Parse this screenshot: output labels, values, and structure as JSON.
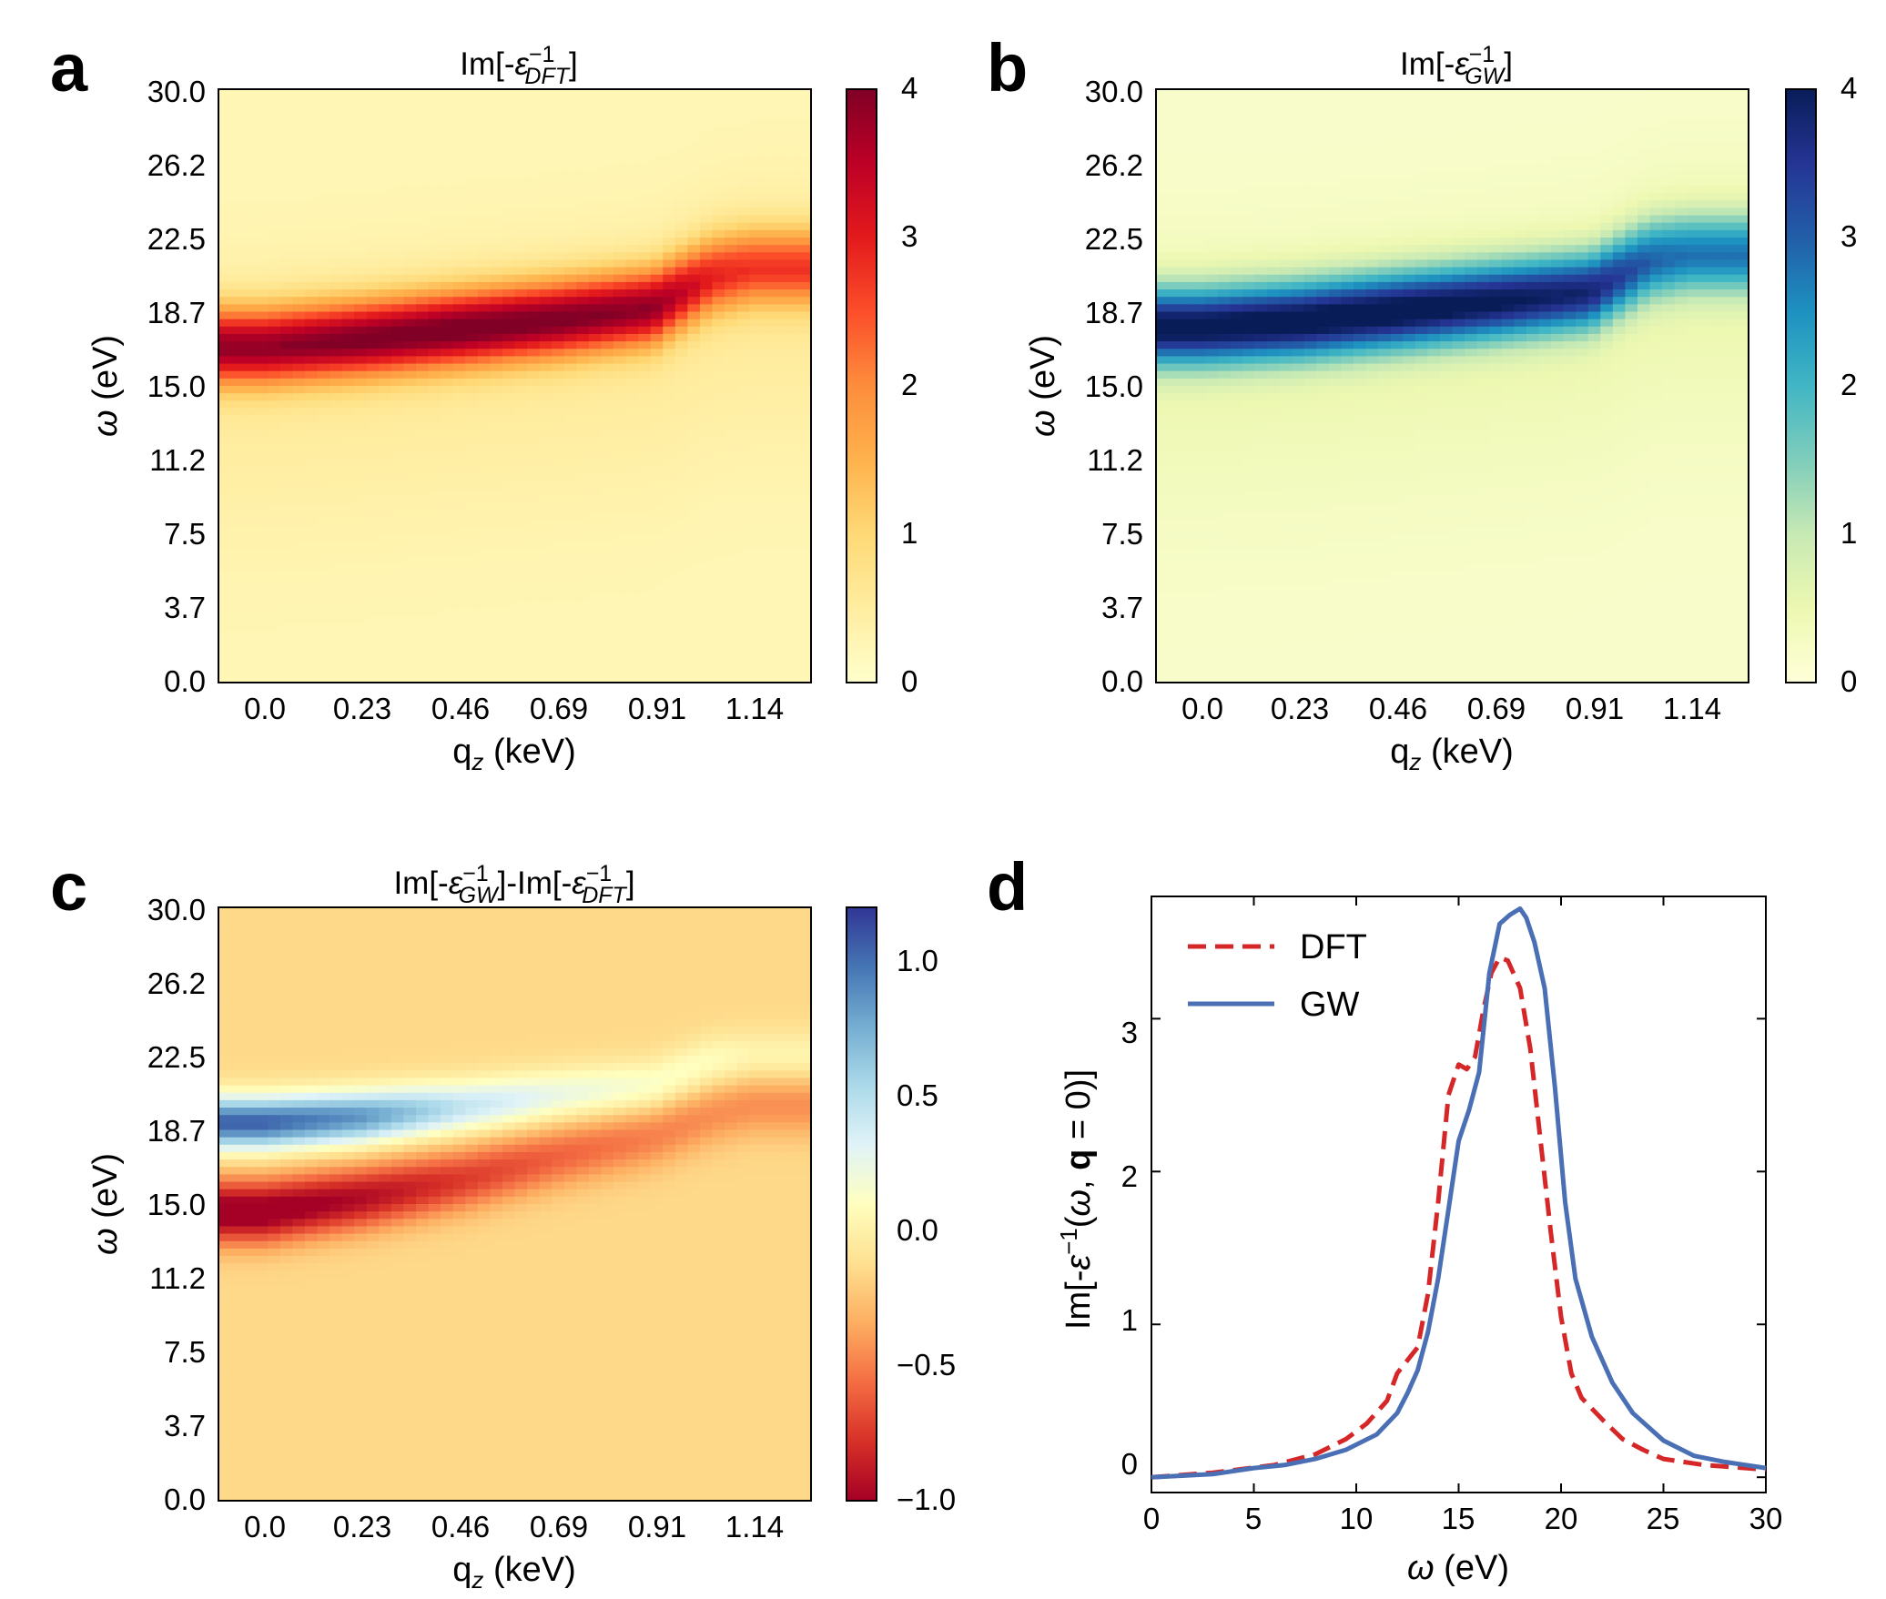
{
  "panels": {
    "a": {
      "label": "a",
      "title": "Im[-ε⁻¹_DFT]"
    },
    "b": {
      "label": "b",
      "title": "Im[-ε⁻¹_GW]"
    },
    "c": {
      "label": "c",
      "title": "Im[-ε⁻¹_GW]-Im[-ε⁻¹_DFT]"
    },
    "d": {
      "label": "d"
    }
  },
  "chart_data": [
    {
      "type": "heatmap",
      "panel": "a",
      "title": "Im[-ε⁻¹_DFT]",
      "xlabel": "q_z (keV)",
      "ylabel": "ω (eV)",
      "x_ticks": [
        "0.0",
        "0.23",
        "0.46",
        "0.69",
        "0.91",
        "1.14"
      ],
      "y_ticks": [
        "0.0",
        "3.7",
        "7.5",
        "11.2",
        "15.0",
        "18.7",
        "22.5",
        "26.2",
        "30.0"
      ],
      "ylim": [
        0,
        30
      ],
      "colormap": "YlOrRd",
      "colorbar": {
        "range": [
          0,
          4
        ],
        "ticks": [
          "0",
          "1",
          "2",
          "3",
          "4"
        ]
      },
      "peak_ridge": {
        "q": [
          0.0,
          0.23,
          0.46,
          0.69,
          0.91,
          1.05,
          1.14
        ],
        "omega": [
          17.0,
          17.4,
          17.9,
          18.4,
          19.0,
          20.6,
          21.0
        ],
        "peak_value": [
          3.3,
          3.5,
          3.6,
          3.5,
          3.3,
          2.4,
          2.2
        ]
      }
    },
    {
      "type": "heatmap",
      "panel": "b",
      "title": "Im[-ε⁻¹_GW]",
      "xlabel": "q_z (keV)",
      "ylabel": "ω (eV)",
      "x_ticks": [
        "0.0",
        "0.23",
        "0.46",
        "0.69",
        "0.91",
        "1.14"
      ],
      "y_ticks": [
        "0.0",
        "3.7",
        "7.5",
        "11.2",
        "15.0",
        "18.7",
        "22.5",
        "26.2",
        "30.0"
      ],
      "ylim": [
        0,
        30
      ],
      "colormap": "YlGnBu",
      "colorbar": {
        "range": [
          0,
          4
        ],
        "ticks": [
          "0",
          "1",
          "2",
          "3",
          "4"
        ]
      },
      "peak_ridge": {
        "q": [
          0.0,
          0.23,
          0.46,
          0.69,
          0.91,
          1.05,
          1.14
        ],
        "omega": [
          18.0,
          18.3,
          18.8,
          19.3,
          19.8,
          21.4,
          21.7
        ],
        "peak_value": [
          3.7,
          3.8,
          3.8,
          3.6,
          3.3,
          2.5,
          2.3
        ]
      }
    },
    {
      "type": "heatmap",
      "panel": "c",
      "title": "Im[-ε⁻¹_GW]-Im[-ε⁻¹_DFT]",
      "xlabel": "q_z (keV)",
      "ylabel": "ω (eV)",
      "x_ticks": [
        "0.0",
        "0.23",
        "0.46",
        "0.69",
        "0.91",
        "1.14"
      ],
      "y_ticks": [
        "0.0",
        "3.7",
        "7.5",
        "11.2",
        "15.0",
        "18.7",
        "22.5",
        "26.2",
        "30.0"
      ],
      "ylim": [
        0,
        30
      ],
      "colormap": "RdYlBu",
      "colorbar": {
        "range": [
          -1.0,
          1.2
        ],
        "ticks": [
          "−1.0",
          "−0.5",
          "0.0",
          "0.5",
          "1.0"
        ]
      },
      "positive_band": {
        "q": [
          0.0,
          0.23,
          0.46,
          0.69,
          0.91,
          1.05,
          1.14
        ],
        "omega": [
          19.1,
          19.4,
          19.9,
          20.5,
          21.0,
          22.2,
          22.4
        ],
        "peak_value": [
          1.2,
          1.0,
          0.6,
          0.4,
          0.3,
          0.25,
          0.2
        ]
      },
      "negative_band": {
        "q": [
          0.0,
          0.23,
          0.46,
          0.69,
          0.91,
          1.05,
          1.14
        ],
        "omega": [
          14.6,
          15.3,
          16.2,
          17.4,
          18.4,
          19.5,
          20.0
        ],
        "peak_value": [
          -0.95,
          -0.8,
          -0.6,
          -0.45,
          -0.35,
          -0.3,
          -0.3
        ]
      }
    },
    {
      "type": "line",
      "panel": "d",
      "xlabel": "ω (eV)",
      "ylabel": "Im[-ε⁻¹(ω, q = 0)]",
      "xlim": [
        0,
        30
      ],
      "ylim": [
        -0.1,
        3.8
      ],
      "x_ticks": [
        "0",
        "5",
        "10",
        "15",
        "20",
        "25",
        "30"
      ],
      "y_ticks": [
        "0",
        "1",
        "2",
        "3"
      ],
      "legend": {
        "position": "top-left",
        "entries": [
          "DFT",
          "GW"
        ]
      },
      "series": [
        {
          "name": "DFT",
          "color": "#d62728",
          "style": "dashed",
          "x": [
            0,
            3,
            6,
            8,
            9.5,
            10.5,
            11.5,
            12,
            13,
            13.5,
            14,
            14.5,
            15,
            15.4,
            15.8,
            16.2,
            16.6,
            17,
            17.4,
            18,
            18.5,
            19,
            19.5,
            20,
            20.5,
            21,
            22,
            23,
            24,
            25,
            27,
            30
          ],
          "y": [
            0,
            0.03,
            0.08,
            0.15,
            0.25,
            0.35,
            0.5,
            0.68,
            0.85,
            1.2,
            1.8,
            2.5,
            2.7,
            2.67,
            2.75,
            3.05,
            3.3,
            3.4,
            3.38,
            3.2,
            2.8,
            2.2,
            1.6,
            1.05,
            0.68,
            0.52,
            0.38,
            0.25,
            0.18,
            0.12,
            0.08,
            0.05
          ]
        },
        {
          "name": "GW",
          "color": "#4a6fb5",
          "style": "solid",
          "x": [
            0,
            3,
            5,
            6.5,
            8,
            9.5,
            11,
            12,
            12.5,
            13,
            13.5,
            14,
            14.5,
            15,
            15.5,
            16,
            16.5,
            17,
            17.5,
            18,
            18.3,
            18.7,
            19.2,
            19.7,
            20.2,
            20.7,
            21.5,
            22.5,
            23.5,
            25,
            26.5,
            28,
            30
          ],
          "y": [
            0,
            0.02,
            0.06,
            0.08,
            0.12,
            0.18,
            0.28,
            0.42,
            0.55,
            0.7,
            0.95,
            1.3,
            1.75,
            2.2,
            2.4,
            2.65,
            3.3,
            3.62,
            3.68,
            3.72,
            3.66,
            3.5,
            3.2,
            2.55,
            1.8,
            1.3,
            0.92,
            0.62,
            0.42,
            0.24,
            0.14,
            0.1,
            0.06
          ]
        }
      ]
    }
  ]
}
